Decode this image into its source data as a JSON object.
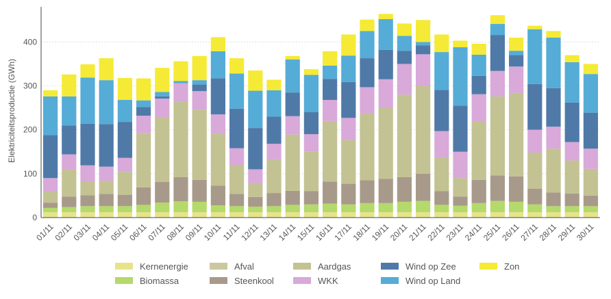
{
  "chart_data": {
    "type": "bar",
    "stacked": true,
    "title": "",
    "xlabel": "",
    "ylabel": "Elektriciteitsproductie (GWh)",
    "ylim": [
      0,
      480
    ],
    "yticks": [
      0,
      100,
      200,
      300,
      400
    ],
    "grid": true,
    "legend_position": "bottom",
    "categories": [
      "01/11",
      "02/11",
      "03/11",
      "04/11",
      "05/11",
      "06/11",
      "07/11",
      "08/11",
      "09/11",
      "10/11",
      "11/11",
      "12/11",
      "13/11",
      "14/11",
      "15/11",
      "16/11",
      "17/11",
      "18/11",
      "19/11",
      "20/11",
      "21/11",
      "22/11",
      "23/11",
      "24/11",
      "25/11",
      "26/11",
      "27/11",
      "28/11",
      "29/11",
      "30/11"
    ],
    "series": [
      {
        "name": "Kernenergie",
        "color": "#e8e38a",
        "values": [
          12,
          12,
          12,
          12,
          12,
          12,
          12,
          12,
          12,
          12,
          12,
          12,
          12,
          12,
          12,
          12,
          12,
          12,
          12,
          12,
          12,
          12,
          12,
          12,
          12,
          12,
          12,
          12,
          12,
          12
        ]
      },
      {
        "name": "Biomassa",
        "color": "#b5d96a",
        "values": [
          10,
          12,
          14,
          14,
          14,
          17,
          22,
          25,
          24,
          16,
          14,
          13,
          14,
          17,
          18,
          20,
          18,
          21,
          21,
          24,
          26,
          17,
          15,
          21,
          26,
          24,
          18,
          14,
          14,
          14
        ]
      },
      {
        "name": "Steenkool",
        "color": "#a89a8a",
        "values": [
          12,
          24,
          25,
          28,
          26,
          40,
          47,
          55,
          50,
          45,
          28,
          22,
          30,
          32,
          30,
          50,
          47,
          52,
          55,
          56,
          62,
          31,
          21,
          53,
          58,
          58,
          36,
          31,
          29,
          24
        ]
      },
      {
        "name": "Afval",
        "color": "#cbc7a0",
        "values": [
          0,
          0,
          0,
          0,
          0,
          0,
          0,
          0,
          0,
          0,
          0,
          0,
          0,
          0,
          0,
          0,
          0,
          0,
          0,
          0,
          0,
          0,
          0,
          0,
          0,
          0,
          0,
          0,
          0,
          0
        ]
      },
      {
        "name": "Aardgas",
        "color": "#c3c292",
        "values": [
          26,
          62,
          30,
          30,
          52,
          123,
          148,
          172,
          160,
          118,
          66,
          31,
          75,
          128,
          90,
          138,
          100,
          152,
          162,
          188,
          200,
          77,
          42,
          133,
          180,
          190,
          82,
          100,
          75,
          61
        ]
      },
      {
        "name": "WKK",
        "color": "#d8a9d9",
        "values": [
          30,
          34,
          38,
          32,
          32,
          40,
          42,
          42,
          42,
          44,
          38,
          32,
          37,
          42,
          40,
          48,
          50,
          60,
          65,
          70,
          72,
          60,
          60,
          62,
          58,
          60,
          52,
          50,
          42,
          46
        ]
      },
      {
        "name": "Wind op Zee",
        "color": "#4f7aa8",
        "values": [
          98,
          66,
          95,
          97,
          82,
          20,
          5,
          0,
          15,
          82,
          90,
          94,
          62,
          54,
          50,
          48,
          82,
          66,
          67,
          30,
          20,
          94,
          105,
          42,
          82,
          26,
          104,
          88,
          90,
          82
        ]
      },
      {
        "name": "Wind op Land",
        "color": "#55acd6",
        "values": [
          88,
          66,
          105,
          100,
          50,
          15,
          10,
          5,
          10,
          62,
          80,
          85,
          60,
          75,
          85,
          30,
          60,
          62,
          70,
          34,
          8,
          86,
          133,
          48,
          25,
          10,
          125,
          115,
          92,
          88
        ]
      },
      {
        "name": "Zon",
        "color": "#f5ea36",
        "values": [
          14,
          50,
          30,
          50,
          50,
          50,
          55,
          45,
          55,
          32,
          35,
          46,
          24,
          8,
          13,
          33,
          48,
          26,
          12,
          28,
          50,
          40,
          15,
          25,
          20,
          30,
          8,
          15,
          16,
          23
        ]
      }
    ]
  },
  "legend": {
    "columns": [
      [
        "Kernenergie",
        "Biomassa"
      ],
      [
        "Afval",
        "Steenkool"
      ],
      [
        "Aardgas",
        "WKK"
      ],
      [
        "Wind op Zee",
        "Wind op Land"
      ],
      [
        "Zon"
      ]
    ]
  }
}
